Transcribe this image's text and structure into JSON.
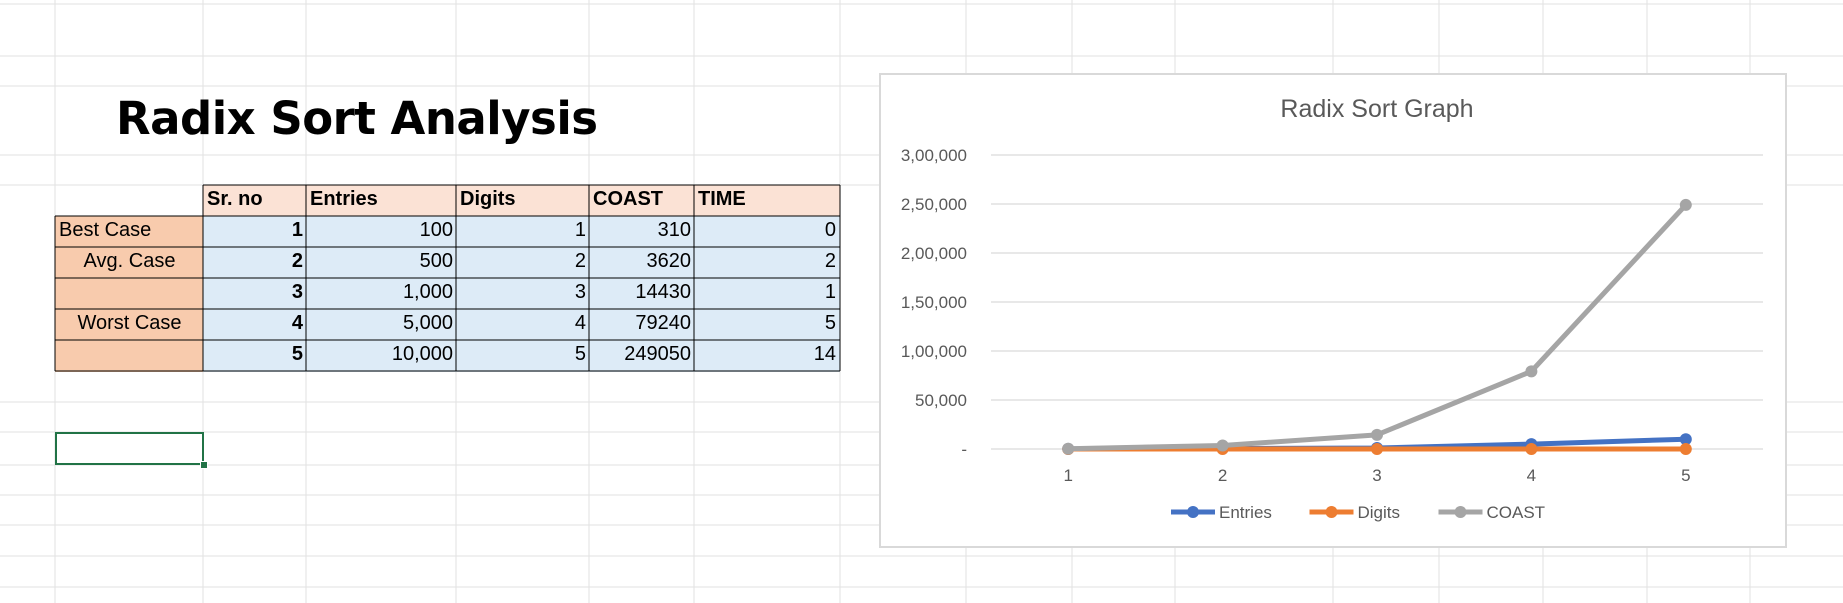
{
  "sheet": {
    "title": "Radix Sort Analysis",
    "headers": [
      "Sr. no",
      "Entries",
      "Digits",
      "COAST",
      "TIME"
    ],
    "case_labels": [
      "Best Case",
      "Avg. Case",
      "",
      "Worst Case",
      ""
    ],
    "rows": [
      {
        "sr": "1",
        "entries": "100",
        "digits": "1",
        "coast": "310",
        "time": "0"
      },
      {
        "sr": "2",
        "entries": "500",
        "digits": "2",
        "coast": "3620",
        "time": "2"
      },
      {
        "sr": "3",
        "entries": "1,000",
        "digits": "3",
        "coast": "14430",
        "time": "1"
      },
      {
        "sr": "4",
        "entries": "5,000",
        "digits": "4",
        "coast": "79240",
        "time": "5"
      },
      {
        "sr": "5",
        "entries": "10,000",
        "digits": "5",
        "coast": "249050",
        "time": "14"
      }
    ]
  },
  "chart_data": {
    "type": "line",
    "title": "Radix Sort Graph",
    "x": [
      1,
      2,
      3,
      4,
      5
    ],
    "xticklabels": [
      "1",
      "2",
      "3",
      "4",
      "5"
    ],
    "ylim": [
      0,
      300000
    ],
    "yticks": [
      0,
      50000,
      100000,
      150000,
      200000,
      250000,
      300000
    ],
    "yticklabels": [
      "-",
      "50,000",
      "1,00,000",
      "1,50,000",
      "2,00,000",
      "2,50,000",
      "3,00,000"
    ],
    "grid": true,
    "legend_position": "bottom",
    "series": [
      {
        "name": "Entries",
        "color": "#4472c4",
        "values": [
          100,
          500,
          1000,
          5000,
          10000
        ]
      },
      {
        "name": "Digits",
        "color": "#ed7d31",
        "values": [
          1,
          2,
          3,
          4,
          5
        ]
      },
      {
        "name": "COAST",
        "color": "#a5a5a5",
        "values": [
          310,
          3620,
          14430,
          79240,
          249050
        ]
      }
    ]
  }
}
